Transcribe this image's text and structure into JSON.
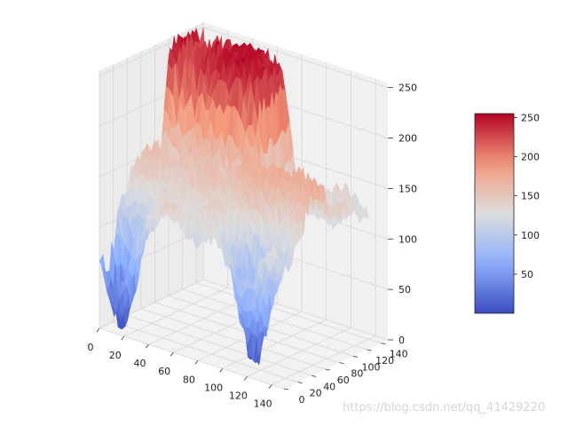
{
  "chart_data": {
    "type": "surface",
    "title": "",
    "xlabel": "",
    "ylabel": "",
    "zlabel": "",
    "colormap": "coolwarm",
    "xlim": [
      0,
      150
    ],
    "ylim": [
      0,
      150
    ],
    "zlim": [
      0,
      255
    ],
    "x_ticks": [
      0,
      20,
      40,
      60,
      80,
      100,
      120,
      140
    ],
    "y_ticks": [
      0,
      20,
      40,
      60,
      80,
      100,
      120,
      140
    ],
    "z_ticks": [
      0,
      50,
      100,
      150,
      200,
      250
    ],
    "colorbar": {
      "range": [
        0,
        255
      ],
      "ticks": [
        50,
        100,
        150,
        200,
        250
      ]
    },
    "surface_features": [
      {
        "feature": "plateau",
        "x_range": [
          0,
          75
        ],
        "y_range": [
          95,
          150
        ],
        "z": 250
      },
      {
        "feature": "ridge",
        "x_range": [
          75,
          150
        ],
        "y_range": [
          40,
          100
        ],
        "z": 170
      },
      {
        "feature": "valley",
        "x_center": 12,
        "y_center": 10,
        "z": 5
      },
      {
        "feature": "valley",
        "x_center": 115,
        "y_center": 20,
        "z": 8
      },
      {
        "feature": "baseline",
        "z": 130
      }
    ]
  },
  "colors": {
    "cold": "#3b4cc0",
    "neutral": "#dddddd",
    "hot": "#b40426",
    "pane": "#f2f2f2",
    "grid": "#e6e6e6"
  },
  "watermark": "https://blog.csdn.net/qq_41429220"
}
